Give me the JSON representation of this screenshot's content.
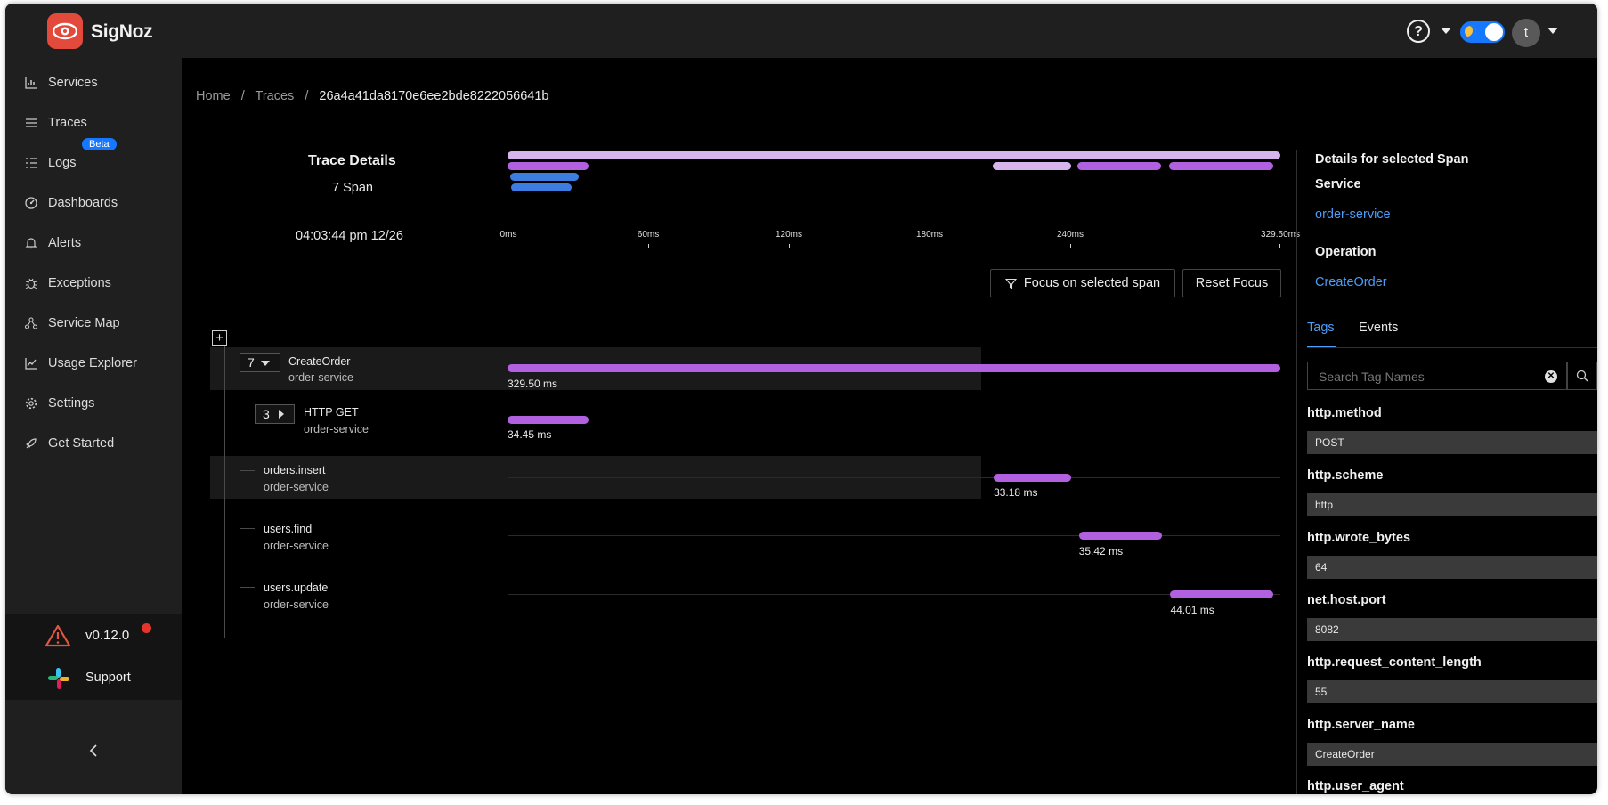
{
  "app": {
    "brand": "SigNoz"
  },
  "header": {
    "avatar_initial": "t"
  },
  "sidebar": {
    "items": [
      {
        "label": "Services",
        "icon": "bar-chart-icon"
      },
      {
        "label": "Traces",
        "icon": "menu-icon"
      },
      {
        "label": "Logs",
        "icon": "logs-icon",
        "badge": "Beta"
      },
      {
        "label": "Dashboards",
        "icon": "dashboard-icon"
      },
      {
        "label": "Alerts",
        "icon": "bell-icon"
      },
      {
        "label": "Exceptions",
        "icon": "bug-icon"
      },
      {
        "label": "Service Map",
        "icon": "deployment-unit-icon"
      },
      {
        "label": "Usage Explorer",
        "icon": "line-chart-icon"
      },
      {
        "label": "Settings",
        "icon": "gear-icon"
      },
      {
        "label": "Get Started",
        "icon": "rocket-icon"
      }
    ],
    "version": "v0.12.0",
    "support": "Support",
    "collapse": "<"
  },
  "breadcrumb": {
    "home": "Home",
    "sep": "/",
    "traces": "Traces",
    "trace_id": "26a4a41da8170e6ee2bde8222056641b"
  },
  "trace_details": {
    "title": "Trace Details",
    "span_count": "7 Span",
    "timestamp": "04:03:44 pm 12/26"
  },
  "timeline": {
    "ticks": [
      "0ms",
      "60ms",
      "120ms",
      "180ms",
      "240ms",
      "329.50ms"
    ],
    "total_ms": 329.5
  },
  "buttons": {
    "focus": "Focus on selected span",
    "reset": "Reset Focus"
  },
  "colors": {
    "span_bar": "#b161e0",
    "mini_light": "#d8b4ec",
    "mini_blue": "#3b7de0",
    "link": "#4d9cf7"
  },
  "spans": [
    {
      "count": "7",
      "name": "CreateOrder",
      "service": "order-service",
      "duration": "329.50 ms",
      "start_ms": 0,
      "dur_ms": 329.5
    },
    {
      "count": "3",
      "name": "HTTP GET",
      "service": "order-service",
      "duration": "34.45 ms",
      "start_ms": 0,
      "dur_ms": 34.45
    },
    {
      "name": "orders.insert",
      "service": "order-service",
      "duration": "33.18 ms",
      "start_ms": 207.3,
      "dur_ms": 33.18
    },
    {
      "name": "users.find",
      "service": "order-service",
      "duration": "35.42 ms",
      "start_ms": 243.6,
      "dur_ms": 35.42
    },
    {
      "name": "users.update",
      "service": "order-service",
      "duration": "44.01 ms",
      "start_ms": 282.6,
      "dur_ms": 44.01
    }
  ],
  "details": {
    "heading": "Details for selected Span",
    "service_label": "Service",
    "service_value": "order-service",
    "operation_label": "Operation",
    "operation_value": "CreateOrder",
    "tabs": [
      "Tags",
      "Events"
    ],
    "search_placeholder": "Search Tag Names",
    "tags": [
      {
        "key": "http.method",
        "value": "POST"
      },
      {
        "key": "http.scheme",
        "value": "http"
      },
      {
        "key": "http.wrote_bytes",
        "value": "64"
      },
      {
        "key": "net.host.port",
        "value": "8082"
      },
      {
        "key": "http.request_content_length",
        "value": "55"
      },
      {
        "key": "http.server_name",
        "value": "CreateOrder"
      },
      {
        "key": "http.user_agent",
        "value": ""
      }
    ]
  }
}
